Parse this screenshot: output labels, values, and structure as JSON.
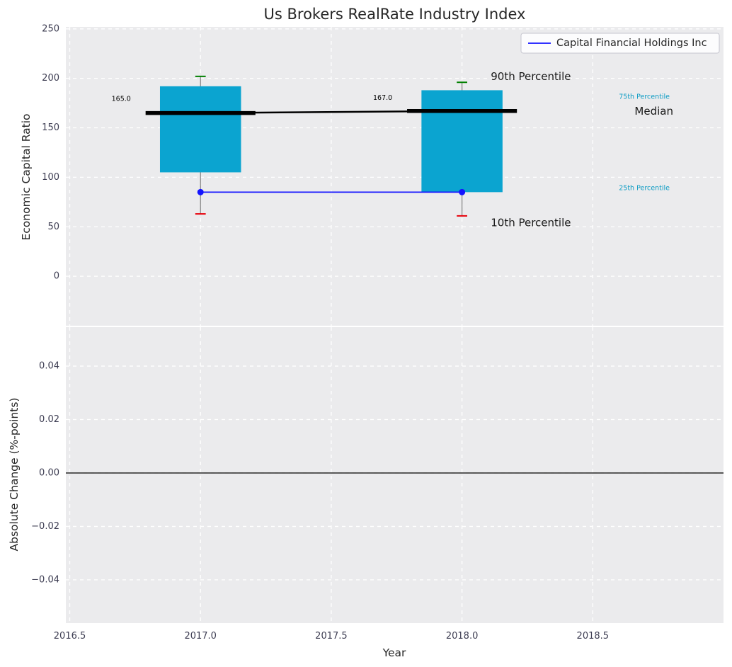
{
  "chart_data": {
    "type": "boxplot",
    "title": "Us Brokers RealRate Industry Index",
    "x": {
      "label": "Year",
      "lim": [
        2016.485,
        2019.0
      ],
      "ticks": [
        {
          "v": 2016.5,
          "label": "2016.5"
        },
        {
          "v": 2017.0,
          "label": "2017.0"
        },
        {
          "v": 2017.5,
          "label": "2017.5"
        },
        {
          "v": 2018.0,
          "label": "2018.0"
        },
        {
          "v": 2018.5,
          "label": "2018.5"
        }
      ]
    },
    "top_panel": {
      "ylabel": "Economic Capital Ratio",
      "ylim": [
        -50,
        252
      ],
      "yticks": [
        {
          "v": 0,
          "label": "0"
        },
        {
          "v": 50,
          "label": "50"
        },
        {
          "v": 100,
          "label": "100"
        },
        {
          "v": 150,
          "label": "150"
        },
        {
          "v": 200,
          "label": "200"
        },
        {
          "v": 250,
          "label": "250"
        }
      ],
      "legend": {
        "label": "Capital Financial Holdings Inc"
      },
      "boxes": [
        {
          "year": 2017,
          "p10": 63,
          "p25": 105,
          "median": 165,
          "p75": 192,
          "p90": 202,
          "median_label": "165.0",
          "label_x": 2016.66,
          "label_y": 179
        },
        {
          "year": 2018,
          "p10": 61,
          "p25": 85,
          "median": 167,
          "p75": 188,
          "p90": 196,
          "median_label": "167.0",
          "label_x": 2017.66,
          "label_y": 180
        }
      ],
      "company_series": {
        "name": "Capital Financial Holdings Inc",
        "x": [
          2017,
          2018
        ],
        "y": [
          85,
          85
        ]
      },
      "annotations": [
        {
          "text": "90th Percentile",
          "x": 2018.11,
          "y": 202,
          "size": 15,
          "color": "#1a1a1a"
        },
        {
          "text": "75th Percentile",
          "x": 2018.6,
          "y": 181,
          "size": 9.5,
          "color": "#0d9cc4"
        },
        {
          "text": "Median",
          "x": 2018.66,
          "y": 167,
          "size": 15,
          "color": "#1a1a1a"
        },
        {
          "text": "25th Percentile",
          "x": 2018.6,
          "y": 89,
          "size": 9.5,
          "color": "#0d9cc4"
        },
        {
          "text": "10th Percentile",
          "x": 2018.11,
          "y": 54,
          "size": 15,
          "color": "#1a1a1a"
        }
      ]
    },
    "bottom_panel": {
      "ylabel": "Absolute Change (%-points)",
      "ylim": [
        -0.0562,
        0.0546
      ],
      "yticks": [
        {
          "v": 0.04,
          "label": "0.04"
        },
        {
          "v": 0.02,
          "label": "0.02"
        },
        {
          "v": 0.0,
          "label": "0.00"
        },
        {
          "v": -0.02,
          "label": "−0.02"
        },
        {
          "v": -0.04,
          "label": "−0.04"
        }
      ],
      "zero_line": true
    },
    "colors": {
      "box_fill": "#0ba4d0",
      "cap_high": "#008000",
      "cap_low": "#e8000b",
      "median": "#000000",
      "company_line": "#1414ff",
      "whisker": "#7f7f7f",
      "plot_background": "#ebebed",
      "grid": "#ffffff",
      "tick_label": "#3d3d52"
    }
  }
}
